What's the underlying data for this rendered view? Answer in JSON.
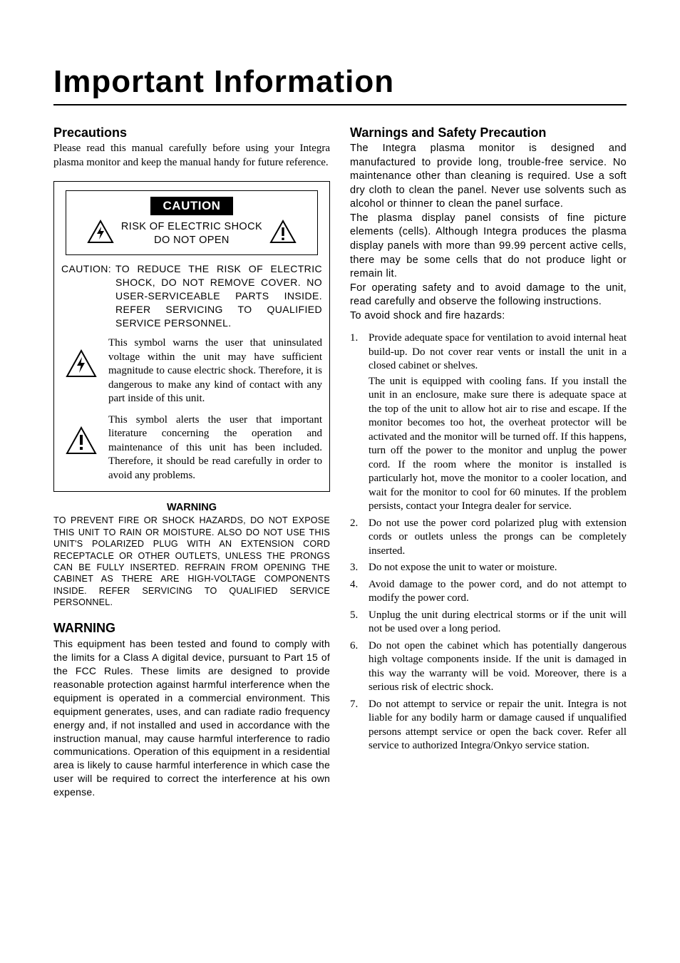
{
  "colors": {
    "text": "#000000",
    "background": "#ffffff",
    "badge_bg": "#000000",
    "badge_fg": "#ffffff"
  },
  "page": {
    "title": "Important Information"
  },
  "left": {
    "precautions": {
      "heading": "Precautions",
      "intro": "Please read this manual carefully before using your Integra plasma monitor and keep the manual handy for future reference."
    },
    "caution_box": {
      "badge": "CAUTION",
      "risk_line1": "RISK OF ELECTRIC SHOCK",
      "risk_line2": "DO NOT OPEN",
      "caution_label": "CAUTION:",
      "caution_body": "TO REDUCE THE RISK OF ELECTRIC SHOCK, DO NOT REMOVE COVER. NO USER-SERVICEABLE PARTS INSIDE. REFER SERVICING TO QUALIFIED SERVICE PERSONNEL.",
      "symbol1": "This symbol warns the user that uninsulated voltage within the unit may have sufficient magnitude to cause electric shock. Therefore, it is dangerous to make any kind of contact with any part inside of this unit.",
      "symbol2": "This symbol alerts the user that important literature concerning the operation and maintenance of this unit has been included. Therefore, it should be read carefully in order to avoid any problems."
    },
    "warning_block": {
      "heading": "WARNING",
      "body": "TO PREVENT FIRE OR SHOCK HAZARDS, DO NOT EXPOSE THIS UNIT TO RAIN OR MOISTURE. ALSO DO NOT USE THIS UNIT'S POLARIZED PLUG WITH AN EXTENSION CORD RECEPTACLE OR OTHER OUTLETS, UNLESS THE PRONGS CAN BE FULLY INSERTED. REFRAIN FROM OPENING THE CABINET AS THERE ARE HIGH-VOLTAGE COMPONENTS INSIDE. REFER SERVICING TO QUALIFIED SERVICE PERSONNEL."
    },
    "fcc": {
      "heading": "WARNING",
      "body": "This equipment has been tested and found to comply with the limits for a Class A digital device, pursuant to Part 15 of the FCC Rules. These limits are designed to provide reasonable protection against harmful interference when the equipment is operated in a commercial environment. This equipment generates, uses, and can radiate radio frequency energy and, if not installed and used in accordance with the instruction manual, may cause harmful interference to radio communications. Operation of this equipment in a residential area is likely to cause harmful interference in which case the user will be required to correct the interference at his own expense."
    }
  },
  "right": {
    "heading": "Warnings and Safety Precaution",
    "intro": "The Integra plasma monitor is designed and manufactured to provide long, trouble-free service. No maintenance other than cleaning is required. Use a soft dry cloth to clean the panel. Never use solvents such as alcohol or thinner to clean the panel surface.\nThe plasma display panel consists of fine picture elements (cells). Although Integra produces the plasma display panels with more than 99.99 percent active cells, there may be some cells that do not produce light or remain lit.\nFor operating safety and to avoid damage to the unit, read carefully and observe the following instructions.\nTo avoid shock and fire hazards:",
    "list": [
      {
        "main": "Provide adequate space for ventilation to avoid internal heat build-up. Do not cover rear vents or install the unit in a closed cabinet or shelves.",
        "sub": "The unit is equipped with cooling fans. If you install the unit in an enclosure, make sure there is adequate space at the top of the unit to allow hot air to rise and escape. If the monitor becomes too hot, the overheat protector will be activated and the monitor will be turned off. If this happens, turn off the power to the monitor and unplug the power cord. If the room where the monitor is installed is particularly hot, move the monitor to a cooler location, and wait for the monitor to cool for 60 minutes. If the problem persists, contact your Integra dealer for service."
      },
      {
        "main": "Do not use the power cord polarized plug with extension cords or outlets unless the prongs can be completely inserted."
      },
      {
        "main": "Do not expose the unit to water or moisture."
      },
      {
        "main": "Avoid damage to the power cord, and do not attempt to modify the power cord."
      },
      {
        "main": "Unplug the unit during electrical storms or if the unit will not be used over a long period."
      },
      {
        "main": "Do not open the cabinet which has potentially dangerous high voltage components inside. If the unit is damaged in this way the warranty will be void. Moreover, there is a serious risk of electric shock."
      },
      {
        "main": "Do not attempt to service or repair the unit. Integra is not liable for any bodily harm or damage caused if unqualified persons attempt service or open the back cover. Refer all service to authorized Integra/Onkyo service station."
      }
    ]
  }
}
